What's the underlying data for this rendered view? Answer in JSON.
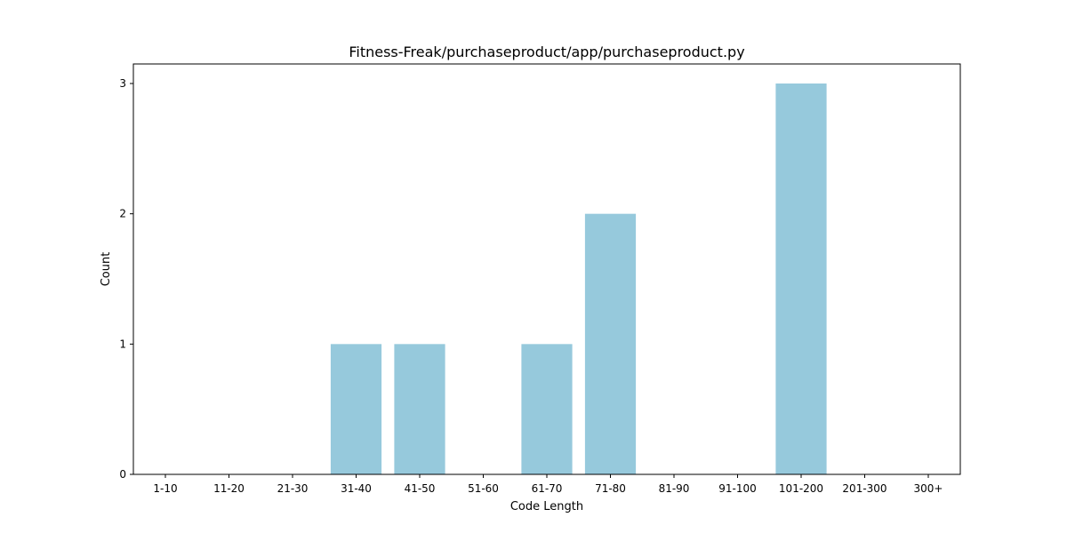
{
  "chart_data": {
    "type": "bar",
    "title": "Fitness-Freak/purchaseproduct/app/purchaseproduct.py",
    "xlabel": "Code Length",
    "ylabel": "Count",
    "categories": [
      "1-10",
      "11-20",
      "21-30",
      "31-40",
      "41-50",
      "51-60",
      "61-70",
      "71-80",
      "81-90",
      "91-100",
      "101-200",
      "201-300",
      "300+"
    ],
    "values": [
      0,
      0,
      0,
      1,
      1,
      0,
      1,
      2,
      0,
      0,
      3,
      0,
      0
    ],
    "ylim": [
      0,
      3.15
    ],
    "yticks": [
      0,
      1,
      2,
      3
    ],
    "bar_color": "#96c9dc",
    "grid": false,
    "legend": "none"
  }
}
